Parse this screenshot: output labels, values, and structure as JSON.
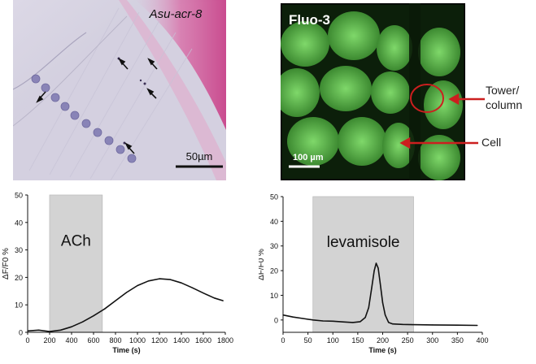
{
  "panels": {
    "micrograph_left": {
      "label": "Asu-acr-8",
      "scale_bar": "50µm"
    },
    "micrograph_right": {
      "label": "Fluo-3",
      "scale_bar": "100 µm",
      "annotation_tower_line1": "Tower/",
      "annotation_tower_line2": "column",
      "annotation_cell": "Cell",
      "annotation_color": "#cc1f1f"
    }
  },
  "chart_data": [
    {
      "type": "line",
      "xlabel": "Time (s)",
      "ylabel": "ΔF/F0 %",
      "xlim": [
        0,
        1800
      ],
      "ylim": [
        0,
        50
      ],
      "xticks": [
        "0",
        "200",
        "400",
        "600",
        "800",
        "1000",
        "1200",
        "1400",
        "1600",
        "1800"
      ],
      "yticks": [
        "0",
        "10",
        "20",
        "30",
        "40",
        "50"
      ],
      "shaded": {
        "label": "ACh",
        "x_start": 200,
        "x_end": 680
      },
      "x": [
        0,
        100,
        200,
        300,
        400,
        500,
        600,
        700,
        800,
        900,
        1000,
        1100,
        1200,
        1300,
        1400,
        1500,
        1600,
        1700,
        1780
      ],
      "y": [
        0.5,
        0.8,
        0.3,
        0.8,
        2.0,
        3.8,
        6.0,
        8.5,
        11.5,
        14.5,
        17.0,
        18.7,
        19.5,
        19.2,
        18.0,
        16.2,
        14.3,
        12.5,
        11.5
      ]
    },
    {
      "type": "line",
      "xlabel": "Time (s)",
      "ylabel": "ΔF/F0 %",
      "xlim": [
        0,
        400
      ],
      "ylim": [
        -5,
        50
      ],
      "xticks": [
        "0",
        "50",
        "100",
        "150",
        "200",
        "250",
        "300",
        "350",
        "400"
      ],
      "yticks": [
        "0",
        "10",
        "20",
        "30",
        "40",
        "50"
      ],
      "shaded": {
        "label": "levamisole",
        "x_start": 60,
        "x_end": 262
      },
      "x": [
        0,
        20,
        40,
        60,
        80,
        100,
        120,
        140,
        155,
        165,
        172,
        178,
        183,
        187,
        191,
        195,
        200,
        205,
        212,
        220,
        240,
        260,
        300,
        350,
        390
      ],
      "y": [
        2.0,
        1.2,
        0.6,
        0.0,
        -0.4,
        -0.5,
        -0.8,
        -1.0,
        -0.7,
        1.0,
        5.0,
        13.0,
        20.0,
        23.0,
        21.0,
        15.0,
        7.0,
        2.0,
        -1.0,
        -1.6,
        -1.8,
        -1.9,
        -2.0,
        -2.1,
        -2.2
      ]
    }
  ]
}
